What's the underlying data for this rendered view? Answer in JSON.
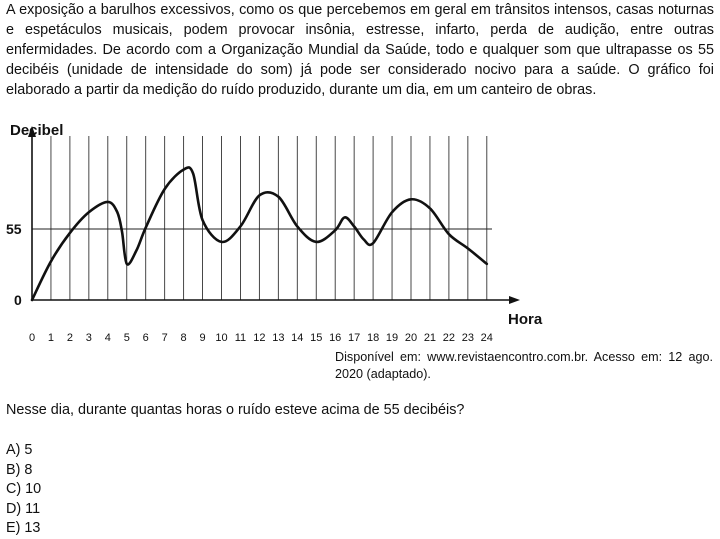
{
  "intro_text": "A exposição a barulhos excessivos, como os que percebemos em geral em trânsitos intensos, casas noturnas e espetáculos musicais, podem provocar insônia, estresse, infarto, perda de audição, entre outras enfermidades. De acordo com a Organização Mundial da Saúde, todo e qualquer som que ultrapasse os 55 decibéis (unidade de intensidade do som) já pode ser considerado nocivo para a saúde. O gráfico foi elaborado a partir da medição do ruído produzido, durante um dia, em um canteiro de obras.",
  "chart_data": {
    "type": "line",
    "xlabel": "Hora",
    "ylabel": "Decibel",
    "x_ticks": [
      "0",
      "1",
      "2",
      "3",
      "4",
      "5",
      "6",
      "7",
      "8",
      "9",
      "10",
      "11",
      "12",
      "13",
      "14",
      "15",
      "16",
      "17",
      "18",
      "19",
      "20",
      "21",
      "22",
      "23",
      "24"
    ],
    "y_ticks": [
      "0",
      "55"
    ],
    "xlim": [
      0,
      24
    ],
    "ylim": [
      0,
      110
    ],
    "reference_line": 55,
    "grid": "vertical lines at each hour",
    "series": [
      {
        "x": [
          0,
          1,
          2,
          3,
          4,
          4.5,
          4.75,
          5,
          5.5,
          6,
          7,
          8,
          8.5,
          9,
          10,
          11,
          12,
          13,
          14,
          15,
          16,
          16.5,
          17,
          17.5,
          18,
          19,
          20,
          21,
          22,
          23,
          24
        ],
        "y": [
          0,
          30,
          52,
          68,
          76,
          68,
          53,
          28,
          38,
          56,
          86,
          101,
          98,
          62,
          45,
          57,
          81,
          80,
          57,
          45,
          54,
          64,
          57,
          47,
          44,
          68,
          78,
          71,
          51,
          40,
          28
        ]
      }
    ]
  },
  "source_text": "Disponível em: www.revistaencontro.com.br. Acesso em: 12 ago. 2020 (adaptado).",
  "question": "Nesse dia, durante quantas horas o ruído esteve acima de 55 decibéis?",
  "options": [
    "A) 5",
    "B) 8",
    "C) 10",
    "D) 11",
    "E) 13"
  ]
}
